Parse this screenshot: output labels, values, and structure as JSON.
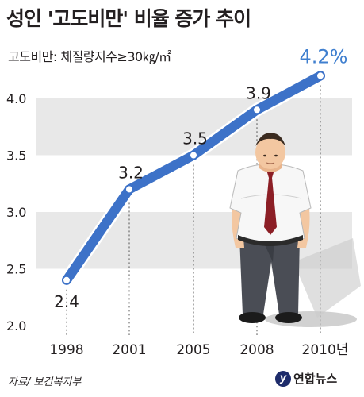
{
  "header": {
    "title": "성인 '고도비만' 비율 증가 추이",
    "subtitle": "고도비만: 체질량지수≥30㎏/㎡"
  },
  "footer": {
    "source": "자료/ 보건복지부",
    "logo_text": "연합뉴스",
    "logo_mark": "y"
  },
  "chart_data": {
    "type": "line",
    "categories": [
      "1998",
      "2001",
      "2005",
      "2008",
      "2010년"
    ],
    "values": [
      2.4,
      3.2,
      3.5,
      3.9,
      4.2
    ],
    "data_labels": [
      "2.4",
      "3.2",
      "3.5",
      "3.9",
      "4.2%"
    ],
    "yticks": [
      "2.0",
      "2.5",
      "3.0",
      "3.5",
      "4.0"
    ],
    "ylim": [
      2.0,
      4.3
    ],
    "grid": "alternating horizontal bands",
    "colors": {
      "line": "#3d72c8",
      "highlight_label": "#3f7fcf",
      "band": "#e8e8e8",
      "text": "#231f20"
    }
  }
}
